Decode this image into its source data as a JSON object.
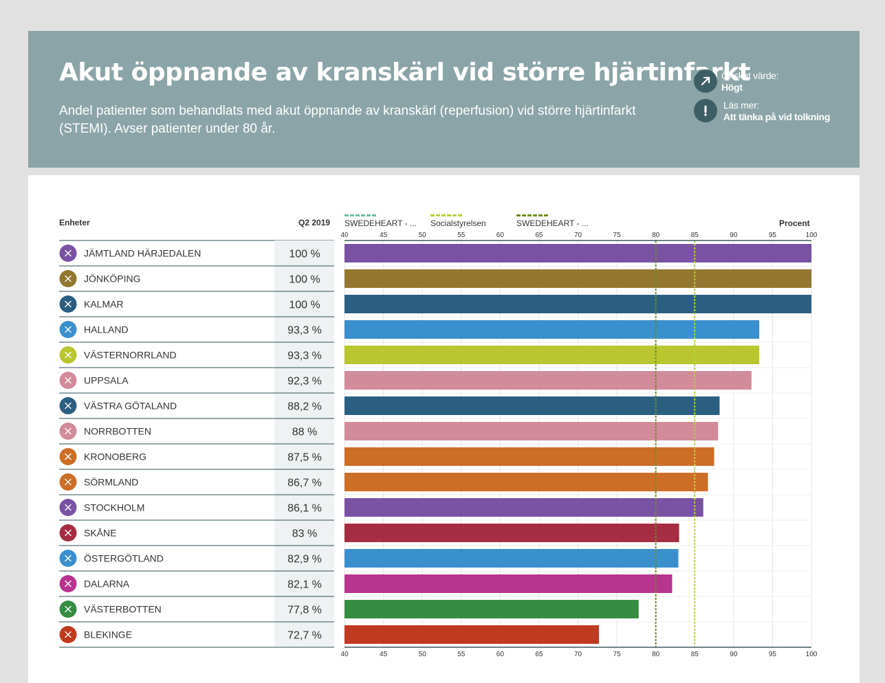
{
  "header": {
    "title": "Akut öppnande av kranskärl vid större hjärtinfarkt",
    "subtitle": "Andel patienter som behandlats med akut öppnande av kranskärl (reperfusion) vid större hjärtinfarkt (STEMI). Avser patienter under 80 år.",
    "info": [
      {
        "icon": "arrow-up-right-icon",
        "label": "Önskat värde:",
        "value": "Högt"
      },
      {
        "icon": "exclamation-icon",
        "label": "Läs mer:",
        "value": "Att tänka på vid tolkning"
      }
    ]
  },
  "table": {
    "col_units": "Enheter",
    "col_period": "Q2 2019",
    "col_axis": "Procent"
  },
  "legend": [
    {
      "label": "SWEDEHEART - ...",
      "color": "#6bbfa0"
    },
    {
      "label": "Socialstyrelsen",
      "color": "#b5d334"
    },
    {
      "label": "SWEDEHEART - ...",
      "color": "#6e8c1e"
    }
  ],
  "chart_data": {
    "type": "bar",
    "orientation": "horizontal",
    "xlabel": "Procent",
    "xlim": [
      40,
      100
    ],
    "xticks": [
      40,
      45,
      50,
      55,
      60,
      65,
      70,
      75,
      80,
      85,
      90,
      95,
      100
    ],
    "reference_lines": [
      {
        "value": 80,
        "color": "#6e8c1e"
      },
      {
        "value": 85,
        "color": "#b5d334"
      }
    ],
    "categories": [
      "JÄMTLAND HÄRJEDALEN",
      "JÖNKÖPING",
      "KALMAR",
      "HALLAND",
      "VÄSTERNORRLAND",
      "UPPSALA",
      "VÄSTRA GÖTALAND",
      "NORRBOTTEN",
      "KRONOBERG",
      "SÖRMLAND",
      "STOCKHOLM",
      "SKÅNE",
      "ÖSTERGÖTLAND",
      "DALARNA",
      "VÄSTERBOTTEN",
      "BLEKINGE"
    ],
    "values": [
      100,
      100,
      100,
      93.3,
      93.3,
      92.3,
      88.2,
      88,
      87.5,
      86.7,
      86.1,
      83,
      82.9,
      82.1,
      77.8,
      72.7
    ],
    "value_labels": [
      "100 %",
      "100 %",
      "100 %",
      "93,3 %",
      "93,3 %",
      "92,3 %",
      "88,2 %",
      "88 %",
      "87,5 %",
      "86,7 %",
      "86,1 %",
      "83 %",
      "82,9 %",
      "82,1 %",
      "77,8 %",
      "72,7 %"
    ],
    "colors": [
      "#7952a3",
      "#93772f",
      "#2b5f82",
      "#3a8fcd",
      "#b9c62f",
      "#d28b9a",
      "#2b5f82",
      "#d28b9a",
      "#cd6e27",
      "#cd6e27",
      "#7952a3",
      "#a62d41",
      "#3a8fcd",
      "#b8348e",
      "#368c41",
      "#bf3a20"
    ]
  }
}
